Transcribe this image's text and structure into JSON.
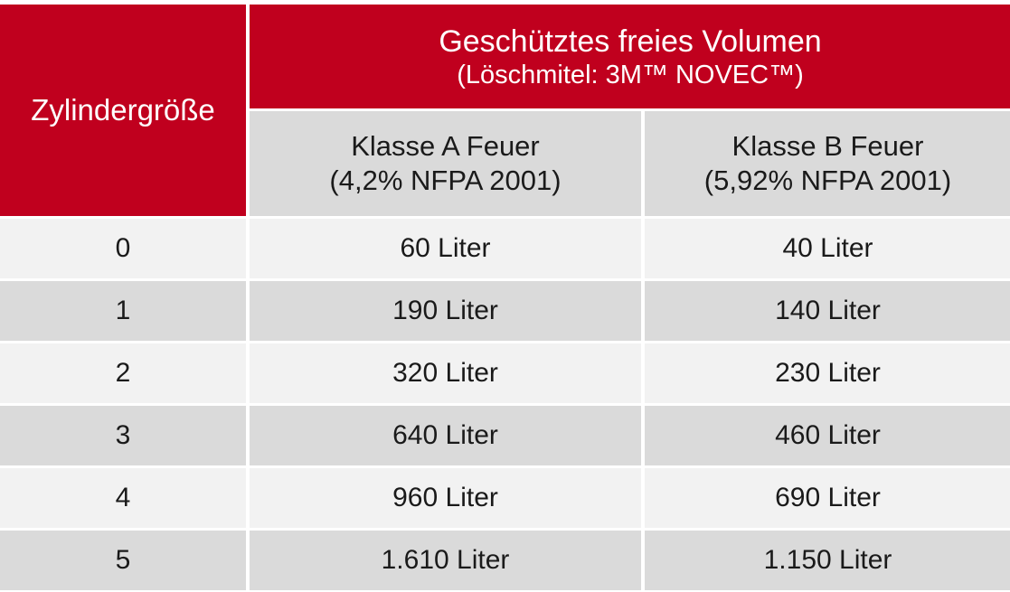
{
  "table": {
    "header": {
      "size_label": "Zylindergröße",
      "volume_title": "Geschütztes freies Volumen",
      "volume_subtitle": "(Löschmitel: 3M™ NOVEC™)",
      "class_a_title": "Klasse A Feuer",
      "class_a_sub": "(4,2% NFPA 2001)",
      "class_b_title": "Klasse B Feuer",
      "class_b_sub": "(5,92% NFPA 2001)"
    },
    "rows": [
      {
        "size": "0",
        "a": "60 Liter",
        "b": "40 Liter"
      },
      {
        "size": "1",
        "a": "190 Liter",
        "b": "140 Liter"
      },
      {
        "size": "2",
        "a": "320 Liter",
        "b": "230 Liter"
      },
      {
        "size": "3",
        "a": "640 Liter",
        "b": "460 Liter"
      },
      {
        "size": "4",
        "a": "960 Liter",
        "b": "690 Liter"
      },
      {
        "size": "5",
        "a": "1.610 Liter",
        "b": "1.150 Liter"
      }
    ],
    "colors": {
      "header_red": "#c0001e",
      "row_light": "#f2f2f2",
      "row_dark": "#dadada"
    }
  }
}
